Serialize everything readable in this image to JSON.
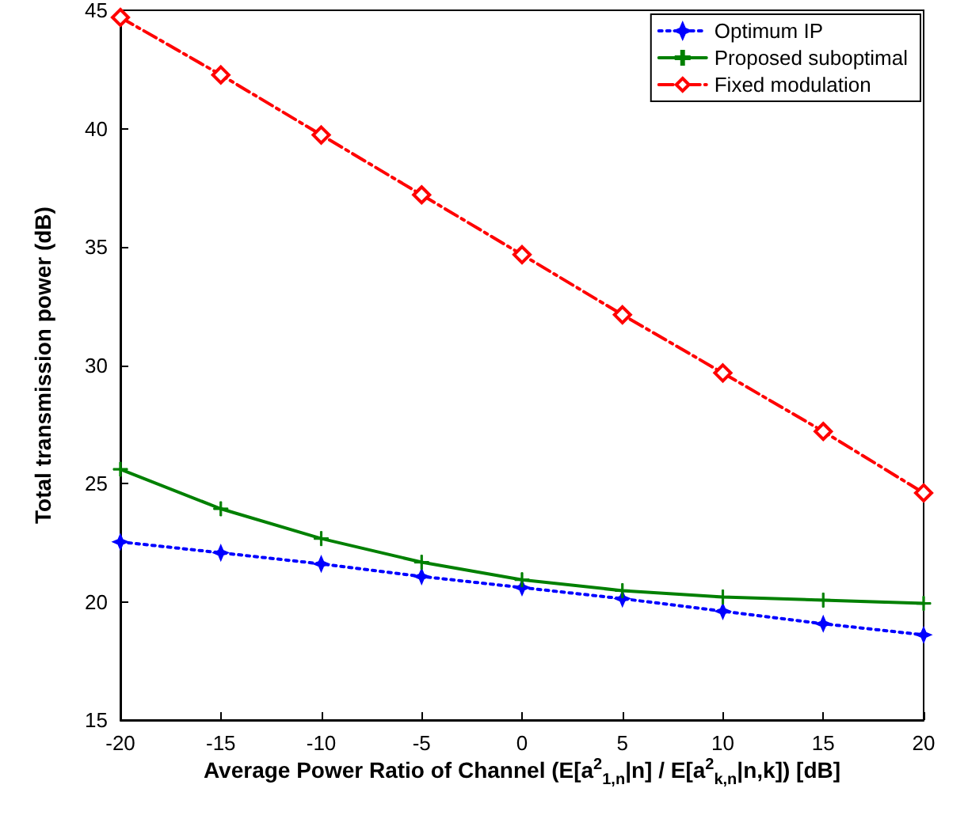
{
  "chart_data": {
    "type": "line",
    "xlabel": "Average Power Ratio of Channel (E[a$^{2}$$_{1,n}$|n] / E[a$^{2}$$_{k,n}$|n,k]) [dB]",
    "ylabel": "Total transmission power (dB)",
    "x": [
      -20,
      -15,
      -10,
      -5,
      0,
      5,
      10,
      15,
      20
    ],
    "series": [
      {
        "name": "Optimum IP",
        "color": "#0000ff",
        "marker": "star",
        "line_style": "dotted",
        "values": [
          22.53,
          22.07,
          21.6,
          21.07,
          20.6,
          20.13,
          19.6,
          19.07,
          18.6
        ]
      },
      {
        "name": "Proposed suboptimal",
        "color": "#008000",
        "marker": "cross",
        "line_style": "solid",
        "values": [
          25.6,
          23.93,
          22.67,
          21.67,
          20.93,
          20.47,
          20.2,
          20.07,
          19.93
        ]
      },
      {
        "name": "Fixed modulation",
        "color": "#ff0000",
        "marker": "diamond",
        "line_style": "dashed",
        "values": [
          44.7,
          42.27,
          39.73,
          37.2,
          34.67,
          32.13,
          29.67,
          27.2,
          24.6
        ]
      }
    ],
    "xlim": [
      -20,
      20
    ],
    "xticks": [
      -20,
      -15,
      -10,
      -5,
      0,
      5,
      10,
      15,
      20
    ],
    "ylim": [
      15,
      45
    ],
    "yticks": [
      15,
      20,
      25,
      30,
      35,
      40,
      45
    ],
    "grid": false,
    "legend": "top right"
  }
}
